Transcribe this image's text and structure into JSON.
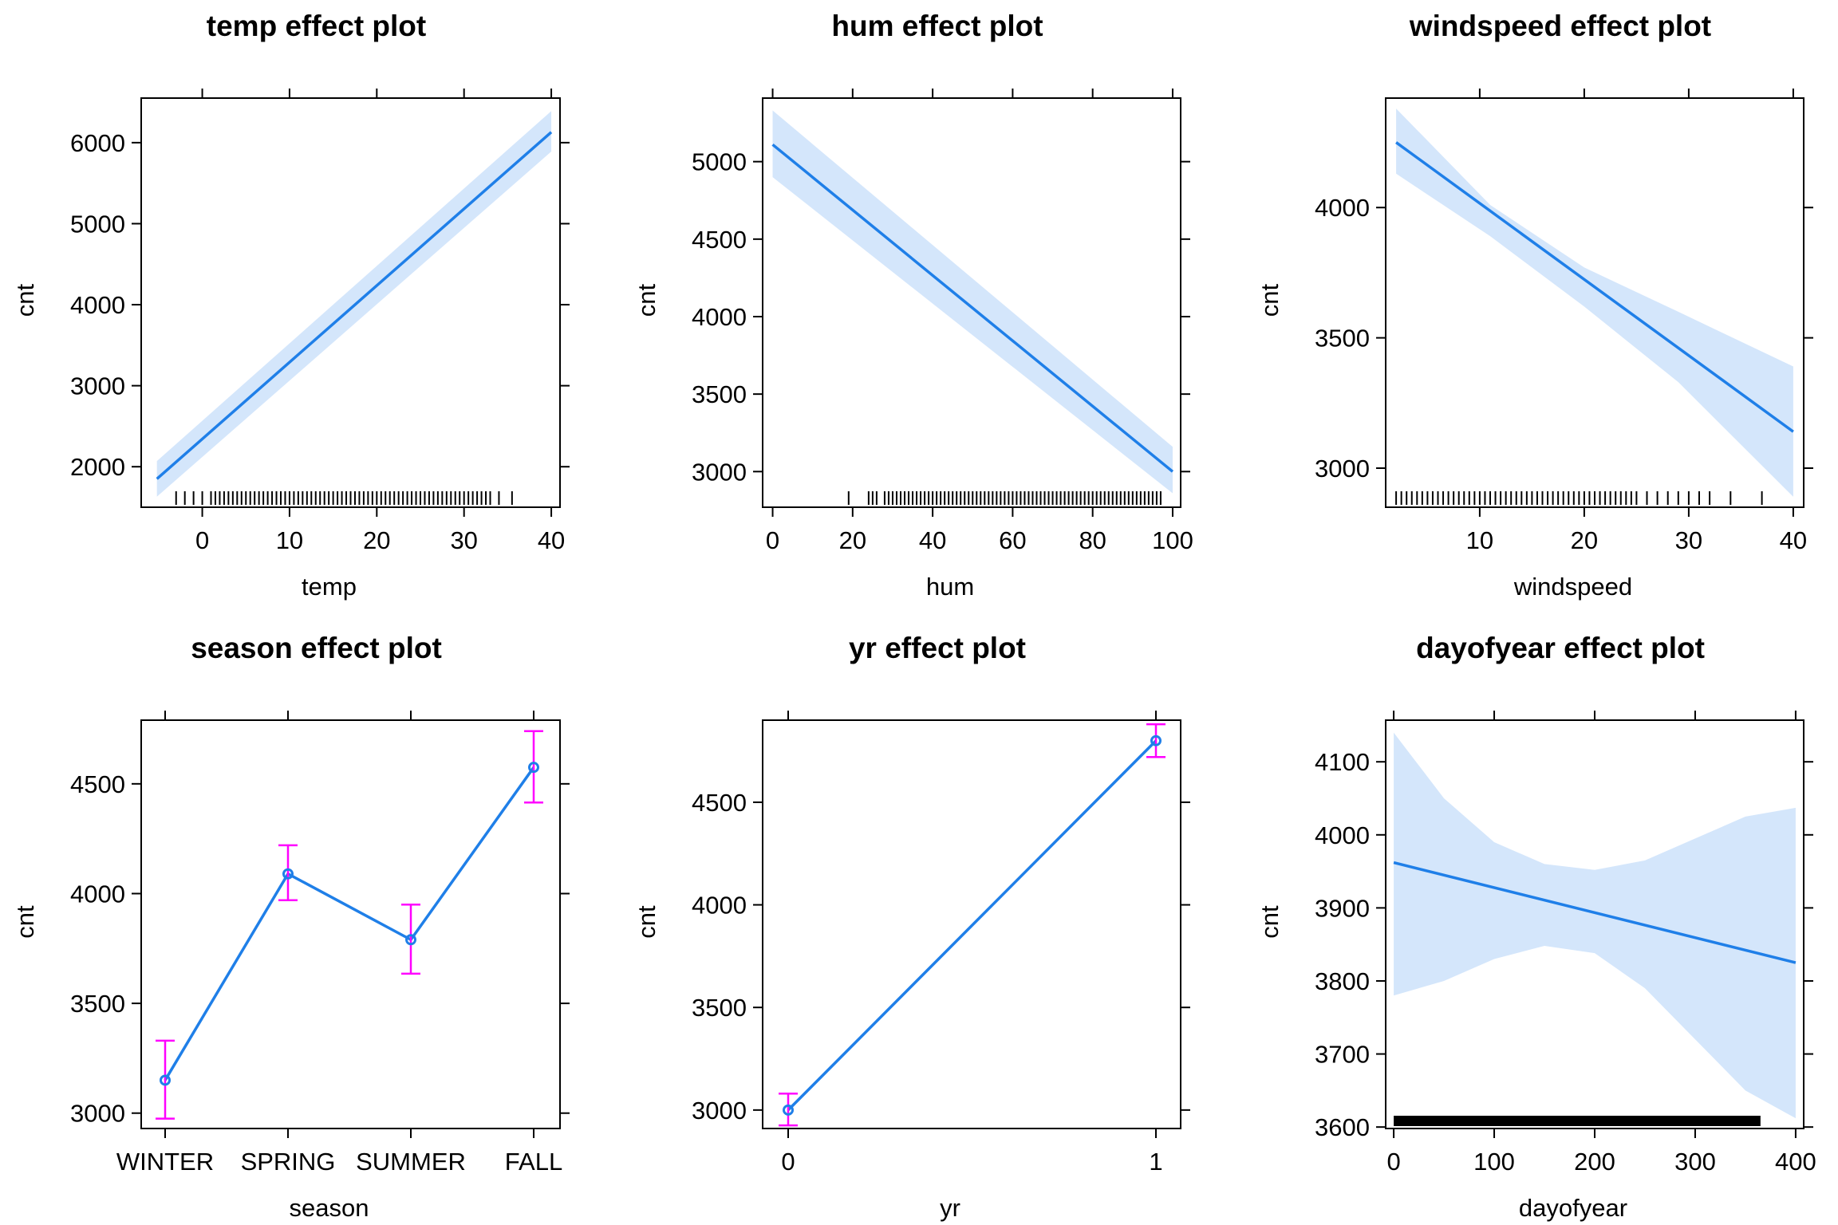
{
  "colors": {
    "line": "#1f7fe8",
    "band": "#d4e6fb",
    "error_bar": "#ff00ff",
    "rug": "#000000",
    "frame": "#000000"
  },
  "chart_data": [
    {
      "id": "temp",
      "type": "line",
      "title": "temp effect plot",
      "xlabel": "temp",
      "ylabel": "cnt",
      "xlim": [
        -7,
        41
      ],
      "ylim": [
        1500,
        6550
      ],
      "xticks": [
        0,
        10,
        20,
        30,
        40
      ],
      "yticks": [
        2000,
        3000,
        4000,
        5000,
        6000
      ],
      "x": [
        -5.2,
        40
      ],
      "y": [
        1850,
        6130
      ],
      "band": {
        "x": [
          -5.2,
          40
        ],
        "lower": [
          1630,
          5890
        ],
        "upper": [
          2070,
          6390
        ]
      },
      "rug": {
        "type": "ticks",
        "values": [
          -3,
          -2,
          -1,
          0,
          1,
          1.5,
          2,
          2.5,
          3,
          3.5,
          4,
          4.5,
          5,
          5.5,
          6,
          6.5,
          7,
          7.5,
          8,
          8.5,
          9,
          9.5,
          10,
          10.5,
          11,
          11.5,
          12,
          12.5,
          13,
          13.5,
          14,
          14.5,
          15,
          15.5,
          16,
          16.5,
          17,
          17.5,
          18,
          18.5,
          19,
          19.5,
          20,
          20.5,
          21,
          21.5,
          22,
          22.5,
          23,
          23.5,
          24,
          24.5,
          25,
          25.5,
          26,
          26.5,
          27,
          27.5,
          28,
          28.5,
          29,
          29.5,
          30,
          30.5,
          31,
          31.5,
          32,
          32.5,
          33,
          34,
          35.5
        ]
      }
    },
    {
      "id": "hum",
      "type": "line",
      "title": "hum effect plot",
      "xlabel": "hum",
      "ylabel": "cnt",
      "xlim": [
        -2.5,
        102
      ],
      "ylim": [
        2770,
        5410
      ],
      "xticks": [
        0,
        20,
        40,
        60,
        80,
        100
      ],
      "yticks": [
        3000,
        3500,
        4000,
        4500,
        5000
      ],
      "x": [
        0,
        100
      ],
      "y": [
        5110,
        3000
      ],
      "band": {
        "x": [
          0,
          100
        ],
        "lower": [
          4900,
          2860
        ],
        "upper": [
          5330,
          3160
        ]
      },
      "rug": {
        "type": "ticks",
        "values": [
          19,
          24,
          25,
          26,
          28,
          29,
          30,
          31,
          32,
          33,
          34,
          35,
          36,
          37,
          38,
          39,
          40,
          41,
          42,
          43,
          44,
          45,
          46,
          47,
          48,
          49,
          50,
          51,
          52,
          53,
          54,
          55,
          56,
          57,
          58,
          59,
          60,
          61,
          62,
          63,
          64,
          65,
          66,
          67,
          68,
          69,
          70,
          71,
          72,
          73,
          74,
          75,
          76,
          77,
          78,
          79,
          80,
          81,
          82,
          83,
          84,
          85,
          86,
          87,
          88,
          89,
          90,
          91,
          92,
          93,
          94,
          95,
          96,
          97
        ]
      }
    },
    {
      "id": "windspeed",
      "type": "line",
      "title": "windspeed effect plot",
      "xlabel": "windspeed",
      "ylabel": "cnt",
      "xlim": [
        1,
        41
      ],
      "ylim": [
        2850,
        4420
      ],
      "xticks": [
        10,
        20,
        30,
        40
      ],
      "yticks": [
        3000,
        3500,
        4000
      ],
      "x": [
        2,
        40
      ],
      "y": [
        4250,
        3140
      ],
      "band": {
        "x": [
          2,
          11,
          20,
          29,
          40
        ],
        "lower": [
          4130,
          3890,
          3620,
          3330,
          2890
        ],
        "upper": [
          4380,
          4010,
          3770,
          3600,
          3390
        ]
      },
      "rug": {
        "type": "ticks",
        "values": [
          2,
          2.5,
          3,
          3.5,
          4,
          4.5,
          5,
          5.5,
          6,
          6.5,
          7,
          7.5,
          8,
          8.5,
          9,
          9.5,
          10,
          10.5,
          11,
          11.5,
          12,
          12.5,
          13,
          13.5,
          14,
          14.5,
          15,
          15.5,
          16,
          16.5,
          17,
          17.5,
          18,
          18.5,
          19,
          19.5,
          20,
          20.5,
          21,
          21.5,
          22,
          22.5,
          23,
          23.5,
          24,
          24.5,
          25,
          26,
          27,
          28,
          29,
          30,
          31,
          32,
          34,
          37
        ]
      }
    },
    {
      "id": "season",
      "type": "line",
      "title": "season effect plot",
      "xlabel": "season",
      "ylabel": "cnt",
      "categories": [
        "WINTER",
        "SPRING",
        "SUMMER",
        "FALL"
      ],
      "ylim": [
        2930,
        4790
      ],
      "yticks": [
        3000,
        3500,
        4000,
        4500
      ],
      "values": [
        3150,
        4090,
        3790,
        4575
      ],
      "error_bars": {
        "lower": [
          2975,
          3970,
          3635,
          4415
        ],
        "upper": [
          3330,
          4220,
          3950,
          4740
        ]
      }
    },
    {
      "id": "yr",
      "type": "line",
      "title": "yr effect plot",
      "xlabel": "yr",
      "ylabel": "cnt",
      "categories": [
        "0",
        "1"
      ],
      "ylim": [
        2910,
        4900
      ],
      "yticks": [
        3000,
        3500,
        4000,
        4500
      ],
      "values": [
        3000,
        4800
      ],
      "error_bars": {
        "lower": [
          2925,
          4720
        ],
        "upper": [
          3080,
          4880
        ]
      }
    },
    {
      "id": "dayofyear",
      "type": "line",
      "title": "dayofyear effect plot",
      "xlabel": "dayofyear",
      "ylabel": "cnt",
      "xlim": [
        -8,
        408
      ],
      "ylim": [
        3598,
        4157
      ],
      "xticks": [
        0,
        100,
        200,
        300,
        400
      ],
      "yticks": [
        3600,
        3700,
        3800,
        3900,
        4000,
        4100
      ],
      "x": [
        0,
        400
      ],
      "y": [
        3962,
        3825
      ],
      "band": {
        "x": [
          0,
          50,
          100,
          150,
          200,
          250,
          300,
          350,
          400
        ],
        "lower": [
          3780,
          3800,
          3830,
          3848,
          3838,
          3790,
          3720,
          3650,
          3612
        ],
        "upper": [
          4140,
          4050,
          3990,
          3960,
          3952,
          3965,
          3995,
          4025,
          4037
        ]
      },
      "rug": {
        "type": "solid",
        "from": 0,
        "to": 365
      }
    }
  ]
}
